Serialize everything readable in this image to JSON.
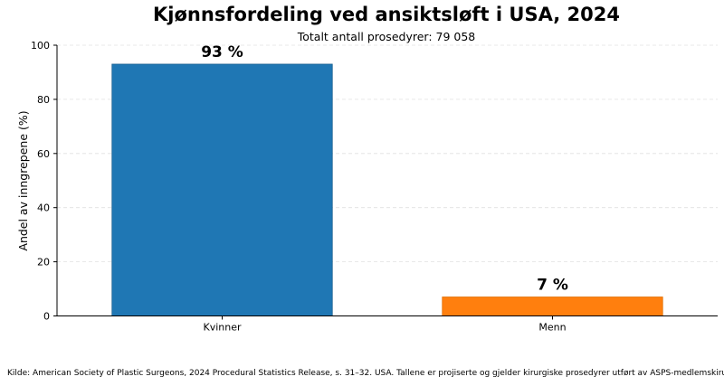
{
  "chart_data": {
    "type": "bar",
    "title": "Kjønnsfordeling ved ansiktsløft i USA, 2024",
    "subtitle": "Totalt antall prosedyrer: 79 058",
    "ylabel": "Andel av inngrepene (%)",
    "xlabel": "",
    "ylim": [
      0,
      100
    ],
    "yticks": [
      0,
      20,
      40,
      60,
      80,
      100
    ],
    "categories": [
      "Kvinner",
      "Menn"
    ],
    "values": [
      93,
      7
    ],
    "data_labels": [
      "93 %",
      "7 %"
    ],
    "colors": [
      "#1f77b4",
      "#ff7f0e"
    ],
    "grid": "y-dashed",
    "legend": "none"
  },
  "source_note": "Kilde: American Society of Plastic Surgeons, 2024 Procedural Statistics Release, s. 31–32. USA. Tallene er projiserte og gjelder kirurgiske prosedyrer utført av ASPS-medlemskirurger."
}
